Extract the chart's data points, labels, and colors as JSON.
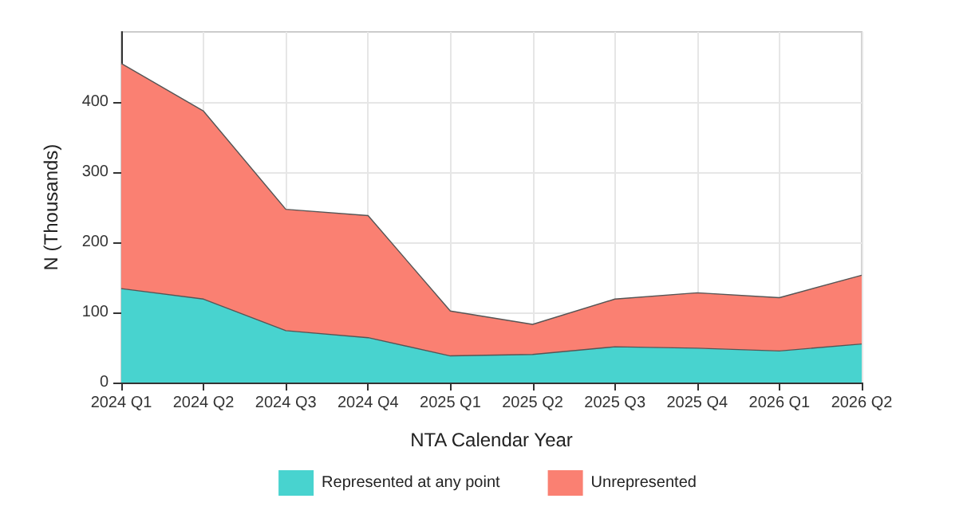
{
  "chart_data": {
    "type": "area",
    "xlabel": "NTA Calendar Year",
    "ylabel": "N (Thousands)",
    "categories": [
      "2024 Q1",
      "2024 Q2",
      "2024 Q3",
      "2024 Q4",
      "2025 Q1",
      "2025 Q2",
      "2025 Q3",
      "2025 Q4",
      "2026 Q1",
      "2026 Q2"
    ],
    "series": [
      {
        "name": "Represented at any point",
        "color": "#48d3cf",
        "values": [
          134,
          119,
          74,
          64,
          38,
          40,
          51,
          49,
          45,
          55
        ]
      },
      {
        "name": "Unrepresented",
        "color": "#fa8072",
        "values": [
          321,
          268,
          173,
          174,
          64,
          43,
          68,
          79,
          76,
          98
        ]
      }
    ],
    "stacked": true,
    "ylim": [
      0,
      500
    ],
    "yticks": [
      0,
      100,
      200,
      300,
      400
    ],
    "grid": true,
    "legend": "bottom"
  }
}
